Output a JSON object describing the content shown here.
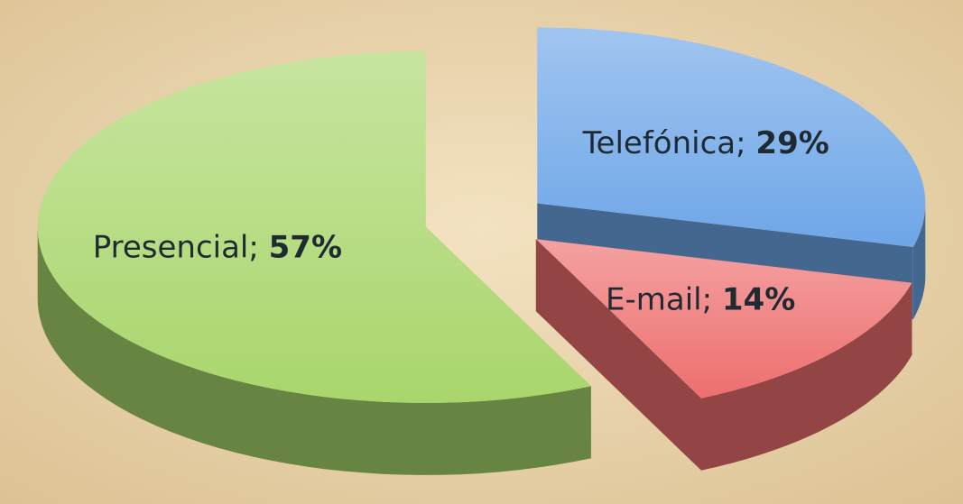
{
  "chart_data": {
    "type": "pie3d",
    "categories": [
      "Telefónica",
      "E-mail",
      "Presencial"
    ],
    "values": [
      29,
      14,
      57
    ],
    "value_labels": [
      "29%",
      "14%",
      "57%"
    ],
    "label_separator": "; ",
    "colors": [
      "#6ea6e8",
      "#ee6f6f",
      "#a9d66c"
    ]
  }
}
